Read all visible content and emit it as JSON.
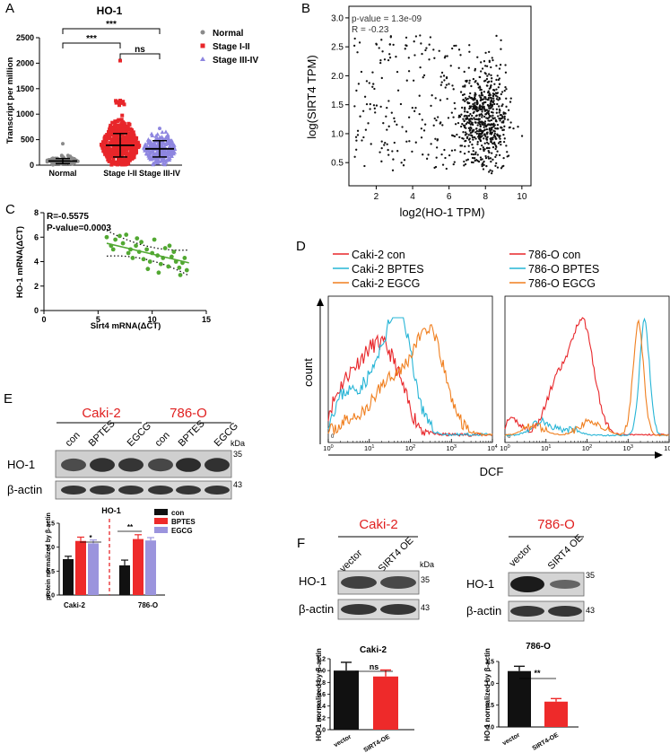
{
  "panels": {
    "a": {
      "letter": "A",
      "title": "HO-1",
      "ylabel": "Transcript per million",
      "yticks": [
        "0",
        "500",
        "1000",
        "1500",
        "2000",
        "2500"
      ],
      "groups": [
        "Normal",
        "Stage I-II",
        "Stage III-IV"
      ],
      "legend": [
        "Normal",
        "Stage I-II",
        "Stage III-IV"
      ],
      "sig": [
        "***",
        "***",
        "ns"
      ]
    },
    "b": {
      "letter": "B",
      "pvalue": "p-value = 1.3e-09",
      "r": "R = -0.23",
      "ylabel": "log(SIRT4 TPM)",
      "xlabel": "log2(HO-1 TPM)",
      "yticks": [
        "0.5",
        "1.0",
        "1.5",
        "2.0",
        "2.5",
        "3.0"
      ],
      "xticks": [
        "2",
        "4",
        "6",
        "8",
        "10"
      ]
    },
    "c": {
      "letter": "C",
      "r": "R=-0.5575",
      "pvalue": "P-value=0.0003",
      "ylabel": "HO-1 mRNA(ΔCT)",
      "xlabel": "Sirt4 mRNA(ΔCT)",
      "yticks": [
        "0",
        "2",
        "4",
        "6",
        "8"
      ],
      "xticks": [
        "0",
        "5",
        "10",
        "15"
      ]
    },
    "d": {
      "letter": "D",
      "ylabel": "count",
      "xlabel": "DCF",
      "legend_left": [
        "Caki-2 con",
        "Caki-2 BPTES",
        "Caki-2 EGCG"
      ],
      "legend_right": [
        "786-O  con",
        "786-O BPTES",
        "786-O EGCG"
      ],
      "zero": "0"
    },
    "e": {
      "letter": "E",
      "cell_a": "Caki-2",
      "cell_b": "786-O",
      "lanes": [
        "con",
        "BPTES",
        "EGCG",
        "con",
        "BPTES",
        "EGCG"
      ],
      "kda": "kDa",
      "ho1": "HO-1",
      "actin": "β-actin",
      "mw_ho1": "35",
      "mw_actin": "43",
      "chart_title": "HO-1",
      "chart_ylabel": "protein normalized by β-actin",
      "yticks": [
        "0.0",
        "0.5",
        "1.0",
        "1.5"
      ],
      "groups": [
        "Caki-2",
        "786-O"
      ],
      "legend": [
        "con",
        "BPTES",
        "EGCG"
      ],
      "sig": [
        "*",
        "**"
      ]
    },
    "f": {
      "letter": "F",
      "cell_a": "Caki-2",
      "cell_b": "786-O",
      "lanes": [
        "vector",
        "SIRT4 OE"
      ],
      "kda": "kDa",
      "ho1": "HO-1",
      "actin": "β-actin",
      "mw_ho1": "35",
      "mw_actin": "43",
      "chart1_title": "Caki-2",
      "chart2_title": "786-O",
      "chart_ylabel": "HO-1 normalized by β-actin",
      "yticks1": [
        "0.0",
        "0.2",
        "0.4",
        "0.6",
        "0.8",
        "1.0",
        "1.2"
      ],
      "yticks2": [
        "0.0",
        "0.5",
        "1.0",
        "1.5"
      ],
      "xlabels": [
        "vector",
        "SIRT4-OE"
      ],
      "sig1": "ns",
      "sig2": "**"
    }
  },
  "colors": {
    "normal": "#8a8a8a",
    "stage12": "#e8262a",
    "stage34": "#8e86e0",
    "con": "#e8262a",
    "bptes": "#27b5d6",
    "egcg": "#f07f1f",
    "bar_con": "#111111",
    "bar_bptes": "#ee2a2a",
    "bar_egcg": "#9b94dd",
    "green": "#52a832",
    "red_label": "#e02020"
  },
  "chart_data": [
    {
      "type": "scatter",
      "title": "HO-1",
      "ylabel": "Transcript per million",
      "ylim": [
        0,
        2500
      ],
      "categories": [
        "Normal",
        "Stage I-II",
        "Stage III-IV"
      ],
      "series": [
        {
          "name": "Normal",
          "mean": 80,
          "sd": 50,
          "max": 420
        },
        {
          "name": "Stage I-II",
          "mean": 390,
          "sd": 230,
          "max": 2050
        },
        {
          "name": "Stage III-IV",
          "mean": 320,
          "sd": 160,
          "max": 720
        }
      ]
    },
    {
      "type": "scatter",
      "xlabel": "log2(HO-1 TPM)",
      "ylabel": "log(SIRT4 TPM)",
      "xlim": [
        0.5,
        10.5
      ],
      "ylim": [
        0.1,
        3.2
      ],
      "r": -0.23,
      "p_value": "1.3e-09"
    },
    {
      "type": "scatter",
      "xlabel": "Sirt4 mRNA(ΔCT)",
      "ylabel": "HO-1 mRNA(ΔCT)",
      "xlim": [
        0,
        15
      ],
      "ylim": [
        0,
        8
      ],
      "r": -0.5575,
      "p_value": 0.0003,
      "fit": {
        "x": [
          5.8,
          13.4
        ],
        "y": [
          5.5,
          3.9
        ]
      },
      "points": [
        [
          5.8,
          6.0
        ],
        [
          6.2,
          5.3
        ],
        [
          6.6,
          5.8
        ],
        [
          7.0,
          6.1
        ],
        [
          7.3,
          5.5
        ],
        [
          7.6,
          6.2
        ],
        [
          8.0,
          5.0
        ],
        [
          8.2,
          4.3
        ],
        [
          8.5,
          5.3
        ],
        [
          8.8,
          4.8
        ],
        [
          9.0,
          5.6
        ],
        [
          9.2,
          4.2
        ],
        [
          9.5,
          5.0
        ],
        [
          9.8,
          4.0
        ],
        [
          10.0,
          4.7
        ],
        [
          10.2,
          5.8
        ],
        [
          10.5,
          4.5
        ],
        [
          10.8,
          3.8
        ],
        [
          11.0,
          4.3
        ],
        [
          11.2,
          5.1
        ],
        [
          11.5,
          3.6
        ],
        [
          11.8,
          4.4
        ],
        [
          12.0,
          4.8
        ],
        [
          12.2,
          4.0
        ],
        [
          12.5,
          3.5
        ],
        [
          12.8,
          3.9
        ],
        [
          13.0,
          4.3
        ],
        [
          13.2,
          3.3
        ],
        [
          7.8,
          4.7
        ],
        [
          9.6,
          3.4
        ],
        [
          10.6,
          3.1
        ],
        [
          12.6,
          2.9
        ],
        [
          6.4,
          5.0
        ],
        [
          8.6,
          5.9
        ],
        [
          11.6,
          5.3
        ]
      ]
    },
    {
      "type": "bar",
      "title": "HO-1",
      "ylabel": "protein normalized by β-actin",
      "ylim": [
        0,
        1.5
      ],
      "categories": [
        "Caki-2",
        "786-O"
      ],
      "series": [
        {
          "name": "con",
          "values": [
            0.75,
            0.62
          ]
        },
        {
          "name": "BPTES",
          "values": [
            1.13,
            1.17
          ]
        },
        {
          "name": "EGCG",
          "values": [
            1.08,
            1.14
          ]
        }
      ]
    },
    {
      "type": "bar",
      "title": "Caki-2",
      "ylabel": "HO-1 normalized by β-actin",
      "ylim": [
        0,
        1.2
      ],
      "categories": [
        "vector",
        "SIRT4-OE"
      ],
      "values": [
        1.0,
        0.9
      ],
      "errors": [
        0.14,
        0.11
      ]
    },
    {
      "type": "bar",
      "title": "786-O",
      "ylabel": "HO-1 normalized by β-actin",
      "ylim": [
        0,
        1.5
      ],
      "categories": [
        "vector",
        "SIRT4-OE"
      ],
      "values": [
        1.28,
        0.58
      ],
      "errors": [
        0.11,
        0.07
      ]
    }
  ]
}
